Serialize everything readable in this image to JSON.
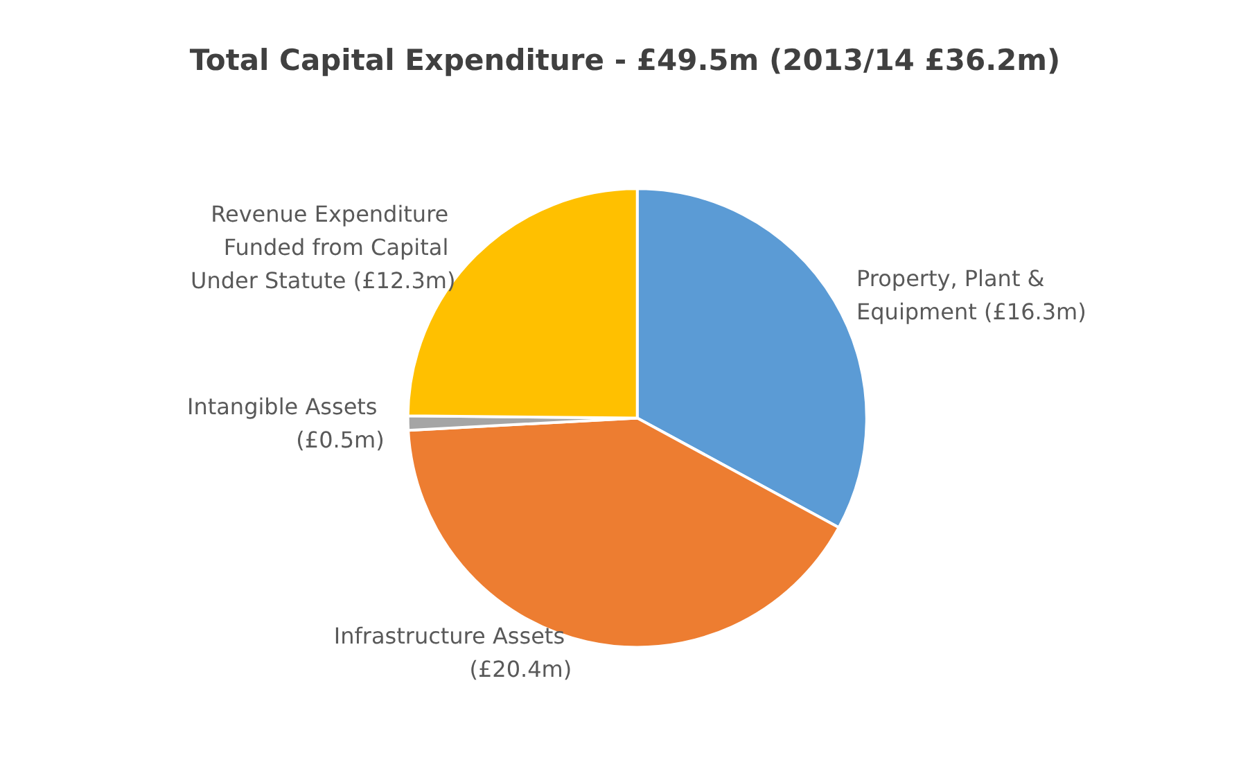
{
  "chart_data": {
    "type": "pie",
    "title": "Total Capital Expenditure - £49.5m (2013/14 £36.2m)",
    "categories": [
      "Property, Plant & Equipment",
      "Infrastructure Assets",
      "Intangible Assets",
      "Revenue Expenditure Funded from Capital Under Statute"
    ],
    "values": [
      16.3,
      20.4,
      0.5,
      12.3
    ],
    "value_labels": [
      "(£16.3m)",
      "(£20.4m)",
      "(£0.5m)",
      "(£12.3m)"
    ],
    "colors": [
      "#5b9bd5",
      "#ed7d31",
      "#a5a5a5",
      "#ffc000"
    ],
    "legend": false
  }
}
